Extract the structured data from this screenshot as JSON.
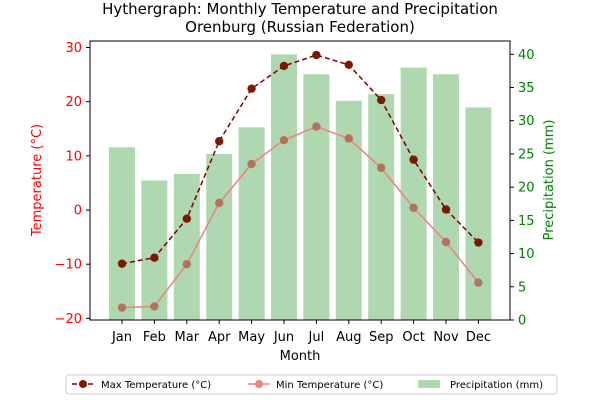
{
  "chart_data": {
    "type": "bar+line",
    "title": "Hythergraph: Monthly Temperature and Precipitation",
    "subtitle": "Orenburg (Russian Federation)",
    "xlabel": "Month",
    "ylabel_left": "Temperature (°C)",
    "ylabel_right": "Precipitation (mm)",
    "categories": [
      "Jan",
      "Feb",
      "Mar",
      "Apr",
      "May",
      "Jun",
      "Jul",
      "Aug",
      "Sep",
      "Oct",
      "Nov",
      "Dec"
    ],
    "ylim_left": [
      -20.3,
      31.2
    ],
    "ylim_right": [
      0,
      42
    ],
    "yticks_left": [
      -20,
      -10,
      0,
      10,
      20,
      30
    ],
    "yticks_right": [
      0,
      5,
      10,
      15,
      20,
      25,
      30,
      35,
      40
    ],
    "series": [
      {
        "name": "Max Temperature (°C)",
        "axis": "left",
        "kind": "line",
        "style": "dashed",
        "color": "#7b0000",
        "values": [
          -9.9,
          -8.8,
          -1.6,
          12.7,
          22.4,
          26.6,
          28.6,
          26.8,
          20.3,
          9.3,
          0.1,
          -6.0
        ]
      },
      {
        "name": "Min Temperature (°C)",
        "axis": "left",
        "kind": "line",
        "style": "solid",
        "color": "#f08080",
        "values": [
          -18.0,
          -17.8,
          -10.0,
          1.3,
          8.5,
          12.9,
          15.4,
          13.2,
          7.8,
          0.4,
          -5.9,
          -13.4
        ]
      },
      {
        "name": "Precipitation (mm)",
        "axis": "right",
        "kind": "bar",
        "color": "#b0d8b0",
        "values": [
          26,
          21,
          22,
          25,
          29,
          40,
          37,
          33,
          34,
          38,
          37,
          32
        ]
      }
    ],
    "legend_position": "bottom",
    "grid": false
  },
  "colors": {
    "left_axis": "#ff0000",
    "right_axis": "#008000",
    "marker_shared": "#7a1a00"
  }
}
